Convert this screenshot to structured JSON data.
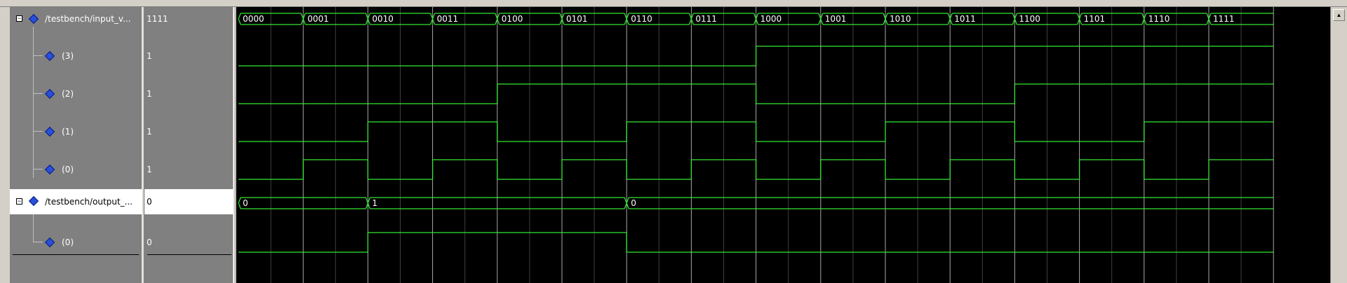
{
  "signals": [
    {
      "name": "/testbench/input_v...",
      "value": "1111",
      "type": "bus",
      "expanded": true,
      "selected": false,
      "transitions": [
        0,
        1,
        2,
        3,
        4,
        5,
        6,
        7,
        8,
        9,
        10,
        11,
        12,
        13,
        14,
        15
      ],
      "labels": [
        "0000",
        "0001",
        "0010",
        "0011",
        "0100",
        "0101",
        "0110",
        "0111",
        "1000",
        "1001",
        "1010",
        "1011",
        "1100",
        "1101",
        "1110",
        "1111"
      ]
    },
    {
      "name": "(3)",
      "value": "1",
      "type": "bit",
      "child": true,
      "levels": [
        0,
        0,
        0,
        0,
        0,
        0,
        0,
        0,
        1,
        1,
        1,
        1,
        1,
        1,
        1,
        1
      ]
    },
    {
      "name": "(2)",
      "value": "1",
      "type": "bit",
      "child": true,
      "levels": [
        0,
        0,
        0,
        0,
        1,
        1,
        1,
        1,
        0,
        0,
        0,
        0,
        1,
        1,
        1,
        1
      ]
    },
    {
      "name": "(1)",
      "value": "1",
      "type": "bit",
      "child": true,
      "levels": [
        0,
        0,
        1,
        1,
        0,
        0,
        1,
        1,
        0,
        0,
        1,
        1,
        0,
        0,
        1,
        1
      ]
    },
    {
      "name": "(0)",
      "value": "1",
      "type": "bit",
      "child": true,
      "levels": [
        0,
        1,
        0,
        1,
        0,
        1,
        0,
        1,
        0,
        1,
        0,
        1,
        0,
        1,
        0,
        1
      ]
    },
    {
      "name": "/testbench/output_...",
      "value": "0",
      "type": "bus",
      "expanded": true,
      "selected": true,
      "transitions": [
        0,
        2,
        6
      ],
      "labels": [
        "0",
        "1",
        "0"
      ]
    },
    {
      "name": "(0)",
      "value": "0",
      "type": "bit",
      "child": true,
      "levels": [
        0,
        0,
        1,
        1,
        1,
        1,
        0,
        0,
        0,
        0,
        0,
        0,
        0,
        0,
        0,
        0
      ]
    }
  ],
  "colors": {
    "wave": "#33e833",
    "grid": "#a8a8a8",
    "bg": "#000000"
  },
  "icons": {
    "expander": "minus-box-icon",
    "signal": "blue-diamond-icon",
    "scroll": "up-arrow-icon"
  },
  "scroll_up_glyph": "▲",
  "expander_glyph": "−"
}
